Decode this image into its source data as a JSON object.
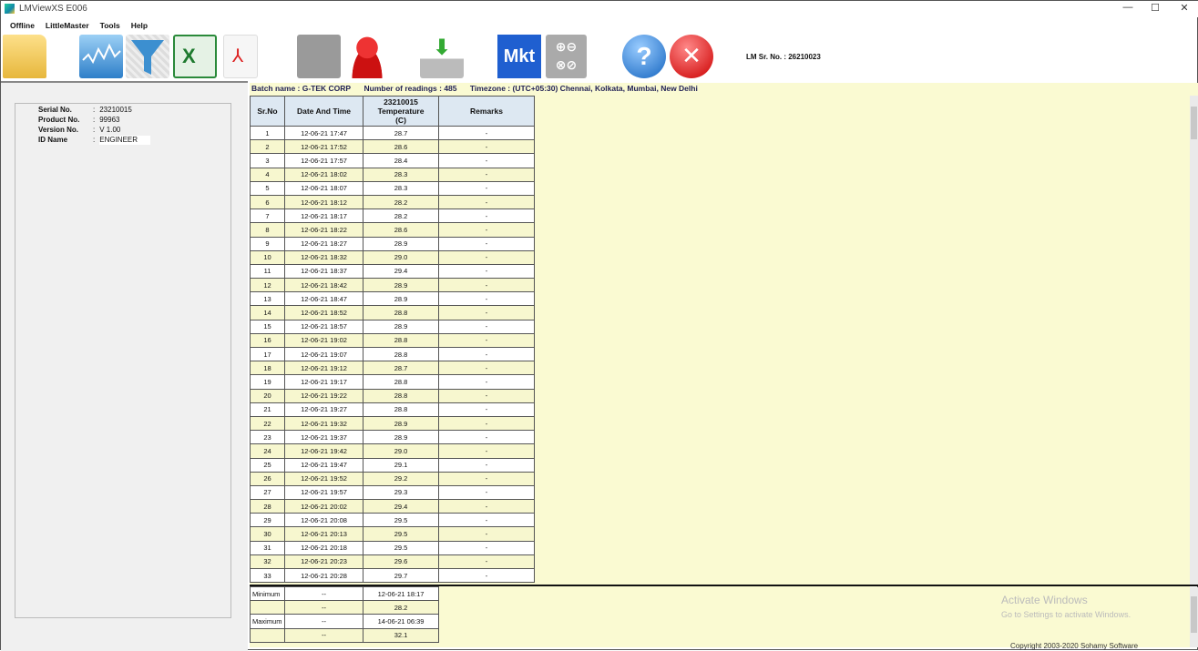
{
  "window": {
    "title": "LMViewXS E006",
    "minimize": "—",
    "maximize": "☐",
    "close": "✕"
  },
  "menu": [
    "Offline",
    "LittleMaster",
    "Tools",
    "Help"
  ],
  "toolbar": {
    "icons": [
      "open-folder-icon",
      "graph-icon",
      "filter-icon",
      "excel-icon",
      "pdf-icon",
      "usb-icon",
      "user-icon",
      "download-icon",
      "mkt-icon",
      "calculator-icon",
      "help-icon",
      "exit-icon"
    ],
    "mkt_label": "Mkt",
    "lm_sr_label": "LM Sr. No. : 26210023"
  },
  "info": [
    {
      "label": "Serial No.",
      "value": "23210015"
    },
    {
      "label": "Product No.",
      "value": "99963"
    },
    {
      "label": "Version No.",
      "value": "V 1.00"
    },
    {
      "label": "ID Name",
      "value": "ENGINEER"
    }
  ],
  "batch": {
    "name": "Batch name : G-TEK CORP",
    "readings": "Number of readings : 485",
    "timezone": "Timezone : (UTC+05:30) Chennai, Kolkata, Mumbai, New Delhi"
  },
  "table": {
    "headers": [
      "Sr.No",
      "Date And Time",
      "23210015\nTemperature\n(C)",
      "Remarks"
    ],
    "rows": [
      [
        "1",
        "12-06-21 17:47",
        "28.7",
        "-"
      ],
      [
        "2",
        "12-06-21 17:52",
        "28.6",
        "-"
      ],
      [
        "3",
        "12-06-21 17:57",
        "28.4",
        "-"
      ],
      [
        "4",
        "12-06-21 18:02",
        "28.3",
        "-"
      ],
      [
        "5",
        "12-06-21 18:07",
        "28.3",
        "-"
      ],
      [
        "6",
        "12-06-21 18:12",
        "28.2",
        "-"
      ],
      [
        "7",
        "12-06-21 18:17",
        "28.2",
        "-"
      ],
      [
        "8",
        "12-06-21 18:22",
        "28.6",
        "-"
      ],
      [
        "9",
        "12-06-21 18:27",
        "28.9",
        "-"
      ],
      [
        "10",
        "12-06-21 18:32",
        "29.0",
        "-"
      ],
      [
        "11",
        "12-06-21 18:37",
        "29.4",
        "-"
      ],
      [
        "12",
        "12-06-21 18:42",
        "28.9",
        "-"
      ],
      [
        "13",
        "12-06-21 18:47",
        "28.9",
        "-"
      ],
      [
        "14",
        "12-06-21 18:52",
        "28.8",
        "-"
      ],
      [
        "15",
        "12-06-21 18:57",
        "28.9",
        "-"
      ],
      [
        "16",
        "12-06-21 19:02",
        "28.8",
        "-"
      ],
      [
        "17",
        "12-06-21 19:07",
        "28.8",
        "-"
      ],
      [
        "18",
        "12-06-21 19:12",
        "28.7",
        "-"
      ],
      [
        "19",
        "12-06-21 19:17",
        "28.8",
        "-"
      ],
      [
        "20",
        "12-06-21 19:22",
        "28.8",
        "-"
      ],
      [
        "21",
        "12-06-21 19:27",
        "28.8",
        "-"
      ],
      [
        "22",
        "12-06-21 19:32",
        "28.9",
        "-"
      ],
      [
        "23",
        "12-06-21 19:37",
        "28.9",
        "-"
      ],
      [
        "24",
        "12-06-21 19:42",
        "29.0",
        "-"
      ],
      [
        "25",
        "12-06-21 19:47",
        "29.1",
        "-"
      ],
      [
        "26",
        "12-06-21 19:52",
        "29.2",
        "-"
      ],
      [
        "27",
        "12-06-21 19:57",
        "29.3",
        "-"
      ],
      [
        "28",
        "12-06-21 20:02",
        "29.4",
        "-"
      ],
      [
        "29",
        "12-06-21 20:08",
        "29.5",
        "-"
      ],
      [
        "30",
        "12-06-21 20:13",
        "29.5",
        "-"
      ],
      [
        "31",
        "12-06-21 20:18",
        "29.5",
        "-"
      ],
      [
        "32",
        "12-06-21 20:23",
        "29.6",
        "-"
      ],
      [
        "33",
        "12-06-21 20:28",
        "29.7",
        "-"
      ]
    ]
  },
  "stats": [
    [
      "Minimum",
      "--",
      "12-06-21 18:17"
    ],
    [
      "",
      "--",
      "28.2"
    ],
    [
      "Maximum",
      "--",
      "14-06-21 06:39"
    ],
    [
      "",
      "--",
      "32.1"
    ]
  ],
  "watermark": {
    "line1": "Activate Windows",
    "line2": "Go to Settings to activate Windows."
  },
  "copyright": "Copyright 2003-2020 Sohamy Software"
}
